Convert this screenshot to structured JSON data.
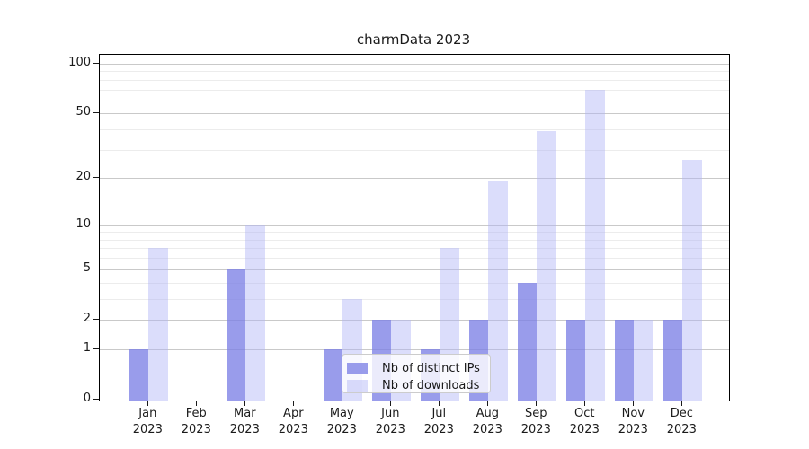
{
  "title": "charmData 2023",
  "legend": {
    "items": [
      {
        "label": "Nb of distinct IPs"
      },
      {
        "label": "Nb of downloads"
      }
    ]
  },
  "chart_data": {
    "type": "bar",
    "title": "charmData 2023",
    "categories": [
      "Jan 2023",
      "Feb 2023",
      "Mar 2023",
      "Apr 2023",
      "May 2023",
      "Jun 2023",
      "Jul 2023",
      "Aug 2023",
      "Sep 2023",
      "Oct 2023",
      "Nov 2023",
      "Dec 2023"
    ],
    "x_months": [
      "Jan",
      "Feb",
      "Mar",
      "Apr",
      "May",
      "Jun",
      "Jul",
      "Aug",
      "Sep",
      "Oct",
      "Nov",
      "Dec"
    ],
    "x_year": "2023",
    "series": [
      {
        "name": "Nb of distinct IPs",
        "values": [
          1,
          0,
          5,
          0,
          1,
          2,
          1,
          2,
          4,
          2,
          2,
          2
        ]
      },
      {
        "name": "Nb of downloads",
        "values": [
          7,
          0,
          10,
          0,
          3,
          2,
          7,
          19,
          39,
          70,
          2,
          26
        ]
      }
    ],
    "xlabel": "",
    "ylabel": "",
    "y_scale": "log-like: position proportional to log10(1+value)",
    "y_ticks": [
      0,
      1,
      2,
      5,
      10,
      20,
      50,
      100
    ],
    "y_minor_gridlines": [
      3,
      4,
      6,
      7,
      8,
      9,
      30,
      40,
      60,
      70,
      80,
      90
    ],
    "ylim": [
      0,
      113
    ],
    "grid": true,
    "legend_position": "lower center inside plot"
  },
  "colors": {
    "ips_bar": "rgba(124,128,230,0.78)",
    "downloads_bar": "rgba(176,180,247,0.45)",
    "grid_major": "#c9c9c9",
    "grid_minor": "#ececec",
    "spine": "#000000",
    "text": "#1a1a1a",
    "legend_bg": "rgba(255,255,255,0.8)",
    "legend_border": "#cccccc"
  }
}
